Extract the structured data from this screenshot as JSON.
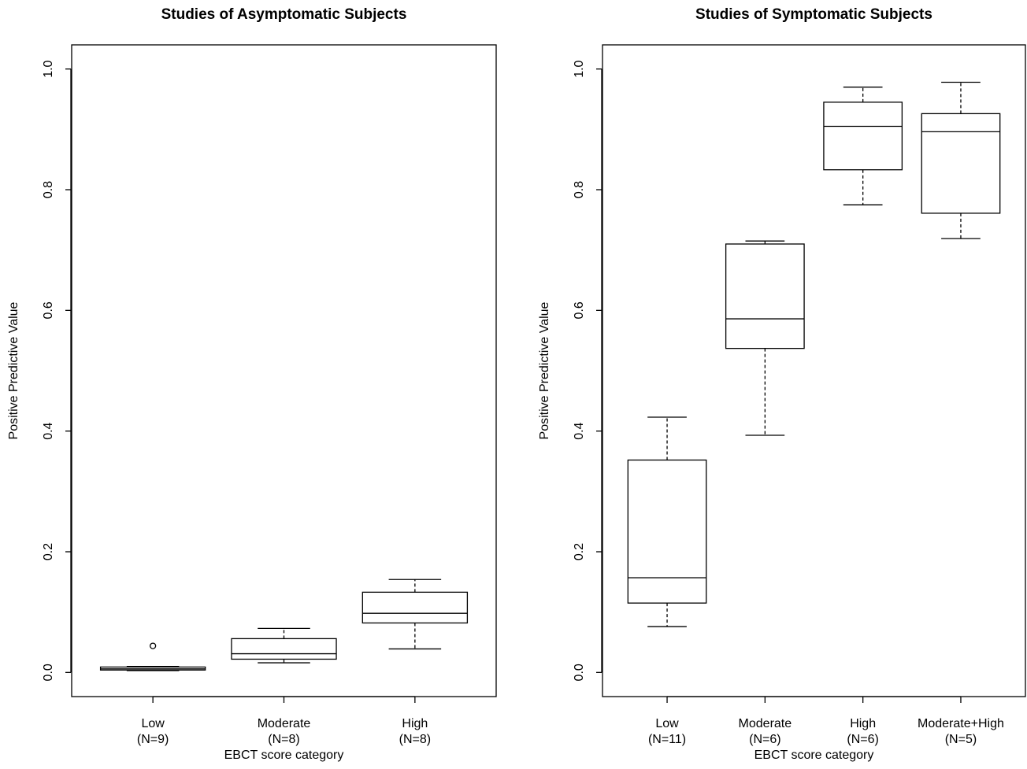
{
  "chart_data": [
    {
      "type": "boxplot",
      "title": "Studies of Asymptomatic Subjects",
      "ylabel": "Positive Predictive Value",
      "xlabel": "EBCT score category",
      "categories": [
        "Low",
        "Moderate",
        "High"
      ],
      "category_counts": [
        "(N=9)",
        "(N=8)",
        "(N=8)"
      ],
      "boxes": [
        {
          "whislo": 0.003,
          "q1": 0.004,
          "med": 0.006,
          "q3": 0.009,
          "whishi": 0.01,
          "fliers": [
            0.044
          ]
        },
        {
          "whislo": 0.016,
          "q1": 0.022,
          "med": 0.031,
          "q3": 0.056,
          "whishi": 0.073,
          "fliers": []
        },
        {
          "whislo": 0.039,
          "q1": 0.082,
          "med": 0.098,
          "q3": 0.133,
          "whishi": 0.154,
          "fliers": []
        }
      ],
      "ylim": [
        -0.04,
        1.04
      ],
      "yticks": [
        {
          "value": 0,
          "label": "0.0"
        },
        0.2,
        0.4,
        0.6,
        0.8,
        {
          "value": 1,
          "label": "1.0"
        }
      ]
    },
    {
      "type": "boxplot",
      "title": "Studies of Symptomatic Subjects",
      "ylabel": "Positive Predictive Value",
      "xlabel": "EBCT score category",
      "categories": [
        "Low",
        "Moderate",
        "High",
        "Moderate+High"
      ],
      "category_counts": [
        "(N=11)",
        "(N=6)",
        "(N=6)",
        "(N=5)"
      ],
      "boxes": [
        {
          "whislo": 0.076,
          "q1": 0.115,
          "med": 0.157,
          "q3": 0.352,
          "whishi": 0.423,
          "fliers": []
        },
        {
          "whislo": 0.393,
          "q1": 0.537,
          "med": 0.586,
          "q3": 0.71,
          "whishi": 0.715,
          "fliers": []
        },
        {
          "whislo": 0.775,
          "q1": 0.833,
          "med": 0.905,
          "q3": 0.945,
          "whishi": 0.97,
          "fliers": []
        },
        {
          "whislo": 0.719,
          "q1": 0.761,
          "med": 0.896,
          "q3": 0.926,
          "whishi": 0.978,
          "fliers": []
        }
      ],
      "ylim": [
        -0.04,
        1.04
      ],
      "yticks": [
        {
          "value": 0,
          "label": "0.0"
        },
        0.2,
        0.4,
        0.6,
        0.8,
        {
          "value": 1,
          "label": "1.0"
        }
      ]
    }
  ]
}
